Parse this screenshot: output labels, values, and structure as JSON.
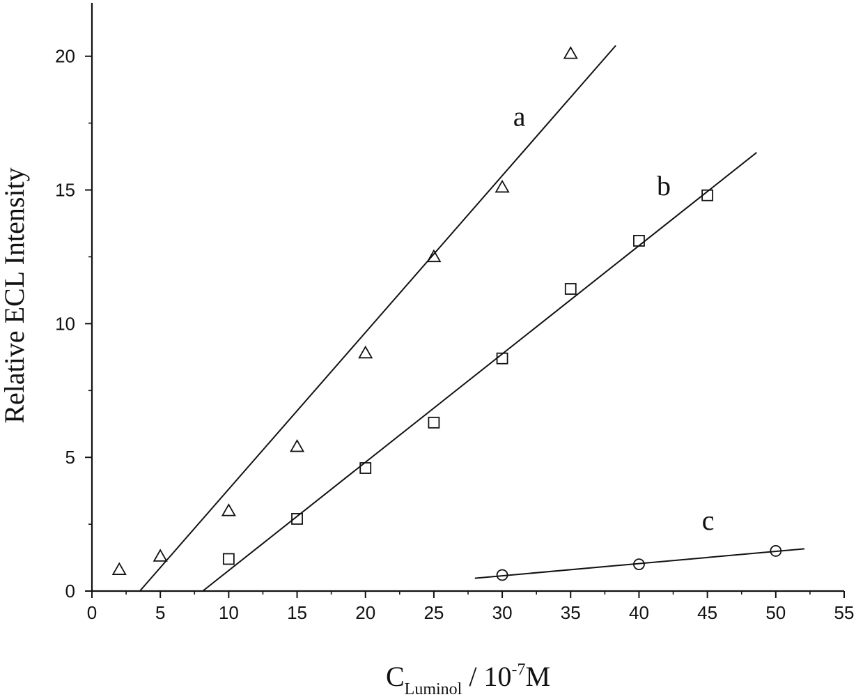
{
  "chart_data": {
    "type": "scatter",
    "xlabel": {
      "main": "C",
      "sub": "Luminol",
      "rest": " / 10",
      "sup": "-7",
      "unit": "M"
    },
    "ylabel": "Relative ECL Intensity",
    "xlim": [
      0,
      55
    ],
    "ylim": [
      0,
      22
    ],
    "xticks": [
      0,
      5,
      10,
      15,
      20,
      25,
      30,
      35,
      40,
      45,
      50,
      55
    ],
    "yticks": [
      0,
      5,
      10,
      15,
      20
    ],
    "grid": false,
    "legend": "none",
    "series": [
      {
        "label": "a",
        "marker": "triangle",
        "points": [
          [
            2,
            0.8
          ],
          [
            5,
            1.3
          ],
          [
            10,
            3.0
          ],
          [
            15,
            5.4
          ],
          [
            20,
            8.9
          ],
          [
            25,
            12.5
          ],
          [
            30,
            15.1
          ],
          [
            35,
            20.1
          ]
        ],
        "fit": {
          "x": [
            3.5,
            38.3
          ],
          "y": [
            0,
            20.4
          ]
        },
        "label_at": [
          30.8,
          17.4
        ]
      },
      {
        "label": "b",
        "marker": "square",
        "points": [
          [
            10,
            1.2
          ],
          [
            15,
            2.7
          ],
          [
            20,
            4.6
          ],
          [
            25,
            6.3
          ],
          [
            30,
            8.7
          ],
          [
            35,
            11.3
          ],
          [
            40,
            13.1
          ],
          [
            45,
            14.8
          ]
        ],
        "fit": {
          "x": [
            8.1,
            48.6
          ],
          "y": [
            0,
            16.4
          ]
        },
        "label_at": [
          41.3,
          14.8
        ]
      },
      {
        "label": "c",
        "marker": "circle",
        "points": [
          [
            30,
            0.6
          ],
          [
            40,
            1.0
          ],
          [
            50,
            1.5
          ]
        ],
        "fit": {
          "x": [
            28,
            52.1
          ],
          "y": [
            0.48,
            1.58
          ]
        },
        "label_at": [
          44.6,
          2.3
        ]
      }
    ]
  }
}
